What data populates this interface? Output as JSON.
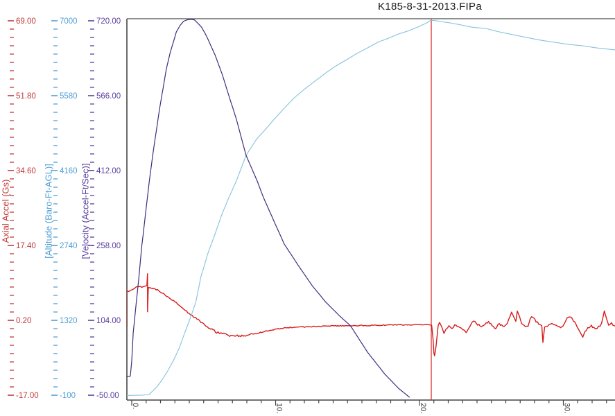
{
  "title": "K185-8-31-2013.FIPa",
  "chart_data": {
    "type": "line",
    "title": "K185-8-31-2013.FIPa",
    "grid": "off",
    "legend": "none",
    "x_axis": {
      "unit": "seconds",
      "ticks_major": [
        0,
        10,
        20,
        30
      ],
      "tick_labels": [
        "0.",
        "10.",
        "20.",
        "30."
      ],
      "minor_divisions_per_major": 10,
      "range": [
        -0.35,
        33.6
      ]
    },
    "y_axes": [
      {
        "id": "accel",
        "label": "Axial Accel (Gs)",
        "color": "#c23a3a",
        "tick_labels": [
          "69.00",
          "51.80",
          "34.60",
          "17.40",
          "0.20",
          "-17.00"
        ],
        "tick_values": [
          69,
          51.8,
          34.6,
          17.4,
          0.2,
          -17
        ],
        "minor_divisions_per_major": 9
      },
      {
        "id": "altitude",
        "label": "[Altitude (Baro-Ft-AGL)]",
        "color": "#4e9fd6",
        "tick_labels": [
          "7000",
          "5580",
          "4160",
          "2740",
          "1320",
          "-100"
        ],
        "tick_values": [
          7000,
          5580,
          4160,
          2740,
          1320,
          -100
        ],
        "minor_divisions_per_major": 9
      },
      {
        "id": "velocity",
        "label": "[Velocity (Accel-Ft/Sec)]",
        "color": "#5a3e9e",
        "tick_labels": [
          "720.00",
          "566.00",
          "412.00",
          "258.00",
          "104.00",
          "-50.00"
        ],
        "tick_values": [
          720,
          566,
          412,
          258,
          104,
          -50
        ],
        "minor_divisions_per_major": 9
      }
    ],
    "event_marker": {
      "t": 20.82,
      "color": "#dd2222",
      "name": "apogee-marker-line"
    },
    "series": [
      {
        "name": "Axial Accel (Gs)",
        "axis": "accel",
        "color": "#d81a1a",
        "width": 1.4,
        "noisy": true,
        "points": [
          [
            -0.34,
            -1.0
          ],
          [
            -0.34,
            6.9
          ],
          [
            -0.2,
            7.0
          ],
          [
            0.0,
            7.3
          ],
          [
            0.3,
            7.7
          ],
          [
            0.6,
            7.9
          ],
          [
            0.9,
            8.1
          ],
          [
            1.05,
            8.1
          ],
          [
            1.1,
            10.8
          ],
          [
            1.1,
            2.0
          ],
          [
            1.15,
            7.9
          ],
          [
            1.3,
            7.8
          ],
          [
            1.6,
            7.4
          ],
          [
            1.9,
            7.0
          ],
          [
            2.2,
            6.3
          ],
          [
            2.5,
            5.5
          ],
          [
            2.9,
            4.7
          ],
          [
            3.2,
            3.9
          ],
          [
            3.6,
            2.9
          ],
          [
            3.9,
            2.0
          ],
          [
            4.3,
            1.0
          ],
          [
            4.7,
            0.1
          ],
          [
            5.1,
            -0.9
          ],
          [
            5.5,
            -1.8
          ],
          [
            5.9,
            -2.5
          ],
          [
            6.3,
            -2.9
          ],
          [
            6.7,
            -3.2
          ],
          [
            7.1,
            -3.4
          ],
          [
            7.5,
            -3.4
          ],
          [
            7.9,
            -3.3
          ],
          [
            8.3,
            -3.1
          ],
          [
            8.7,
            -2.8
          ],
          [
            9.2,
            -2.4
          ],
          [
            9.6,
            -2.1
          ],
          [
            10.1,
            -1.8
          ],
          [
            10.6,
            -1.6
          ],
          [
            11.1,
            -1.4
          ],
          [
            12.0,
            -1.3
          ],
          [
            13.0,
            -1.2
          ],
          [
            14.0,
            -1.1
          ],
          [
            15.0,
            -1.05
          ],
          [
            16.0,
            -1.0
          ],
          [
            17.0,
            -0.95
          ],
          [
            18.0,
            -0.9
          ],
          [
            19.0,
            -0.85
          ],
          [
            20.0,
            -0.82
          ],
          [
            20.7,
            -0.8
          ],
          [
            20.85,
            -1.1
          ],
          [
            20.95,
            -4.3
          ],
          [
            21.0,
            -7.2
          ],
          [
            21.05,
            -8.0
          ],
          [
            21.15,
            -5.6
          ],
          [
            21.3,
            -1.1
          ],
          [
            21.4,
            -0.2
          ],
          [
            21.55,
            -1.5
          ],
          [
            21.7,
            -2.6
          ],
          [
            21.85,
            -1.8
          ],
          [
            22.05,
            -1.1
          ],
          [
            22.25,
            -1.6
          ],
          [
            22.45,
            -1.0
          ],
          [
            22.7,
            -1.3
          ],
          [
            23.0,
            -1.9
          ],
          [
            23.25,
            -2.6
          ],
          [
            23.45,
            -1.6
          ],
          [
            23.65,
            -0.3
          ],
          [
            23.85,
            0.0
          ],
          [
            24.05,
            -0.8
          ],
          [
            24.3,
            -1.1
          ],
          [
            24.55,
            -0.8
          ],
          [
            24.8,
            0.0
          ],
          [
            25.05,
            -1.0
          ],
          [
            25.3,
            -1.6
          ],
          [
            25.55,
            -0.5
          ],
          [
            25.8,
            -1.3
          ],
          [
            26.0,
            -1.0
          ],
          [
            26.2,
            0.3
          ],
          [
            26.4,
            2.1
          ],
          [
            26.55,
            1.1
          ],
          [
            26.7,
            0.0
          ],
          [
            26.8,
            2.2
          ],
          [
            26.95,
            1.0
          ],
          [
            27.1,
            -0.5
          ],
          [
            27.35,
            -1.1
          ],
          [
            27.55,
            -1.0
          ],
          [
            27.7,
            0.8
          ],
          [
            27.9,
            1.0
          ],
          [
            28.1,
            0.0
          ],
          [
            28.3,
            -0.6
          ],
          [
            28.5,
            -1.1
          ],
          [
            28.58,
            -5.1
          ],
          [
            28.7,
            -1.4
          ],
          [
            28.9,
            -1.0
          ],
          [
            29.2,
            -0.6
          ],
          [
            29.5,
            -1.1
          ],
          [
            29.8,
            -1.4
          ],
          [
            30.05,
            -0.8
          ],
          [
            30.25,
            0.6
          ],
          [
            30.45,
            1.1
          ],
          [
            30.7,
            0.2
          ],
          [
            30.95,
            -1.1
          ],
          [
            31.15,
            -2.5
          ],
          [
            31.35,
            -3.5
          ],
          [
            31.5,
            -2.5
          ],
          [
            31.7,
            -1.6
          ],
          [
            31.95,
            -1.1
          ],
          [
            32.2,
            -1.8
          ],
          [
            32.45,
            -1.3
          ],
          [
            32.65,
            -0.6
          ],
          [
            32.85,
            2.4
          ],
          [
            33.0,
            0.5
          ],
          [
            33.15,
            -1.0
          ],
          [
            33.35,
            -0.5
          ],
          [
            33.6,
            -1.1
          ]
        ]
      },
      {
        "name": "Altitude (Baro-Ft-AGL)",
        "axis": "altitude",
        "color": "#85c1dd",
        "width": 1.1,
        "noisy": false,
        "points": [
          [
            -0.34,
            -105
          ],
          [
            0.7,
            -100
          ],
          [
            1.2,
            -87
          ],
          [
            1.75,
            58
          ],
          [
            2.1,
            189
          ],
          [
            2.5,
            360
          ],
          [
            2.9,
            557
          ],
          [
            3.3,
            794
          ],
          [
            3.65,
            1057
          ],
          [
            4.05,
            1346
          ],
          [
            4.45,
            1662
          ],
          [
            4.8,
            2135
          ],
          [
            5.3,
            2595
          ],
          [
            5.8,
            2963
          ],
          [
            6.25,
            3318
          ],
          [
            6.75,
            3647
          ],
          [
            7.25,
            3949
          ],
          [
            7.95,
            4449
          ],
          [
            8.7,
            4765
          ],
          [
            9.15,
            4896
          ],
          [
            9.9,
            5133
          ],
          [
            10.6,
            5343
          ],
          [
            11.3,
            5541
          ],
          [
            12.05,
            5712
          ],
          [
            12.8,
            5869
          ],
          [
            13.5,
            6014
          ],
          [
            14.2,
            6145
          ],
          [
            14.95,
            6264
          ],
          [
            15.65,
            6382
          ],
          [
            16.4,
            6487
          ],
          [
            17.1,
            6592
          ],
          [
            17.85,
            6671
          ],
          [
            18.55,
            6750
          ],
          [
            19.3,
            6816
          ],
          [
            20.0,
            6895
          ],
          [
            20.5,
            6960
          ],
          [
            20.8,
            7010
          ],
          [
            21.2,
            7000
          ],
          [
            21.45,
            6987
          ],
          [
            22.15,
            6960
          ],
          [
            22.9,
            6921
          ],
          [
            23.6,
            6881
          ],
          [
            24.6,
            6855
          ],
          [
            25.55,
            6789
          ],
          [
            26.5,
            6737
          ],
          [
            27.45,
            6684
          ],
          [
            28.45,
            6631
          ],
          [
            29.4,
            6592
          ],
          [
            30.35,
            6553
          ],
          [
            31.3,
            6527
          ],
          [
            32.3,
            6487
          ],
          [
            33.6,
            6448
          ]
        ]
      },
      {
        "name": "Velocity (Accel-Ft/Sec)",
        "axis": "velocity",
        "color": "#3f2c7e",
        "width": 1.2,
        "noisy": false,
        "points": [
          [
            -0.34,
            -11
          ],
          [
            -0.1,
            -11
          ],
          [
            0.0,
            20
          ],
          [
            0.1,
            78
          ],
          [
            0.3,
            136
          ],
          [
            0.5,
            193
          ],
          [
            0.7,
            257
          ],
          [
            0.95,
            321
          ],
          [
            1.2,
            385
          ],
          [
            1.45,
            442
          ],
          [
            1.7,
            492
          ],
          [
            1.95,
            542
          ],
          [
            2.2,
            585
          ],
          [
            2.4,
            620
          ],
          [
            2.65,
            652
          ],
          [
            2.9,
            677
          ],
          [
            3.1,
            697
          ],
          [
            3.35,
            710
          ],
          [
            3.6,
            719
          ],
          [
            3.85,
            722
          ],
          [
            4.1,
            723
          ],
          [
            4.35,
            722
          ],
          [
            4.6,
            715
          ],
          [
            4.85,
            707
          ],
          [
            5.1,
            694
          ],
          [
            5.3,
            682
          ],
          [
            5.8,
            649
          ],
          [
            6.3,
            609
          ],
          [
            6.75,
            566
          ],
          [
            7.25,
            520
          ],
          [
            7.95,
            443
          ],
          [
            8.7,
            392
          ],
          [
            9.15,
            357
          ],
          [
            9.9,
            307
          ],
          [
            10.6,
            261
          ],
          [
            11.55,
            218
          ],
          [
            12.55,
            175
          ],
          [
            13.5,
            141
          ],
          [
            14.45,
            113
          ],
          [
            15.2,
            93
          ],
          [
            16.4,
            38
          ],
          [
            17.6,
            -7
          ],
          [
            18.55,
            -36
          ],
          [
            19.3,
            -54
          ]
        ]
      }
    ]
  }
}
